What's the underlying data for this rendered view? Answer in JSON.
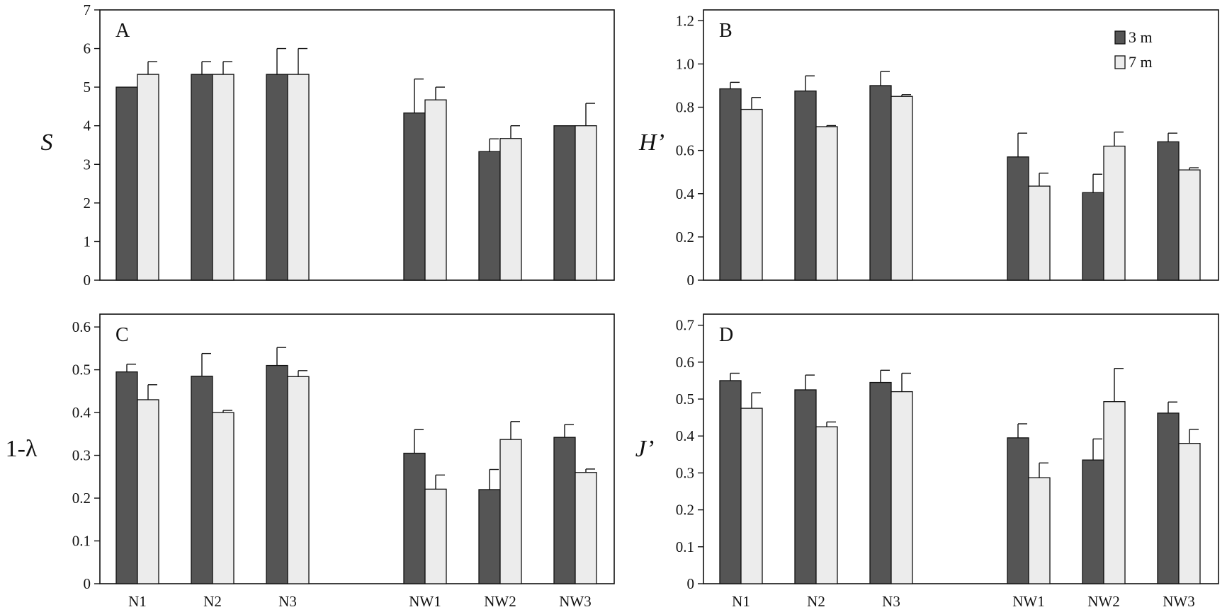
{
  "chart_data": [
    {
      "type": "bar",
      "panel": "A",
      "ylabel": "S",
      "ylabel_italic": true,
      "ylim": [
        0,
        7
      ],
      "yticks": [
        "0",
        "1",
        "2",
        "3",
        "4",
        "5",
        "6",
        "7"
      ],
      "categories": [
        "N1",
        "N2",
        "N3",
        "NW1",
        "NW2",
        "NW3"
      ],
      "series": [
        {
          "name": "3 m",
          "values": [
            5.0,
            5.33,
            5.33,
            4.33,
            3.33,
            4.0
          ],
          "errors": [
            0,
            0.33,
            0.67,
            0.88,
            0.33,
            0
          ]
        },
        {
          "name": "7 m",
          "values": [
            5.33,
            5.33,
            5.33,
            4.67,
            3.67,
            4.0
          ],
          "errors": [
            0.33,
            0.33,
            0.67,
            0.33,
            0.33,
            0.58
          ]
        }
      ],
      "show_xticks": false,
      "legend": null
    },
    {
      "type": "bar",
      "panel": "B",
      "ylabel": "H’",
      "ylabel_italic": true,
      "ylim": [
        0,
        1.25
      ],
      "yticks": [
        "0",
        "0.2",
        "0.4",
        "0.6",
        "0.8",
        "1.0",
        "1.2"
      ],
      "categories": [
        "N1",
        "N2",
        "N3",
        "NW1",
        "NW2",
        "NW3"
      ],
      "series": [
        {
          "name": "3 m",
          "values": [
            0.885,
            0.875,
            0.9,
            0.57,
            0.405,
            0.64
          ],
          "errors": [
            0.03,
            0.07,
            0.065,
            0.11,
            0.085,
            0.04
          ]
        },
        {
          "name": "7 m",
          "values": [
            0.79,
            0.71,
            0.85,
            0.435,
            0.62,
            0.51
          ],
          "errors": [
            0.055,
            0.005,
            0.008,
            0.06,
            0.065,
            0.01
          ]
        }
      ],
      "show_xticks": false,
      "legend": "top-right"
    },
    {
      "type": "bar",
      "panel": "C",
      "ylabel": "1-λ",
      "ylabel_italic": false,
      "ylim": [
        0,
        0.63
      ],
      "yticks": [
        "0",
        "0.1",
        "0.2",
        "0.3",
        "0.4",
        "0.5",
        "0.6"
      ],
      "categories": [
        "N1",
        "N2",
        "N3",
        "NW1",
        "NW2",
        "NW3"
      ],
      "series": [
        {
          "name": "3 m",
          "values": [
            0.495,
            0.485,
            0.51,
            0.305,
            0.22,
            0.342
          ],
          "errors": [
            0.018,
            0.053,
            0.042,
            0.055,
            0.047,
            0.03
          ]
        },
        {
          "name": "7 m",
          "values": [
            0.43,
            0.4,
            0.484,
            0.221,
            0.337,
            0.26
          ],
          "errors": [
            0.035,
            0.005,
            0.014,
            0.033,
            0.042,
            0.008
          ]
        }
      ],
      "show_xticks": true,
      "legend": null
    },
    {
      "type": "bar",
      "panel": "D",
      "ylabel": "J’",
      "ylabel_italic": true,
      "ylim": [
        0,
        0.73
      ],
      "yticks": [
        "0",
        "0.1",
        "0.2",
        "0.3",
        "0.4",
        "0.5",
        "0.6",
        "0.7"
      ],
      "categories": [
        "N1",
        "N2",
        "N3",
        "NW1",
        "NW2",
        "NW3"
      ],
      "series": [
        {
          "name": "3 m",
          "values": [
            0.55,
            0.525,
            0.545,
            0.395,
            0.335,
            0.462
          ],
          "errors": [
            0.02,
            0.04,
            0.033,
            0.038,
            0.057,
            0.03
          ]
        },
        {
          "name": "7 m",
          "values": [
            0.475,
            0.425,
            0.52,
            0.287,
            0.493,
            0.38
          ],
          "errors": [
            0.042,
            0.013,
            0.05,
            0.04,
            0.09,
            0.038
          ]
        }
      ],
      "show_xticks": true,
      "legend": null
    }
  ],
  "colors": {
    "series_3m": "#555555",
    "series_7m": "#ececec",
    "stroke": "#111111"
  }
}
